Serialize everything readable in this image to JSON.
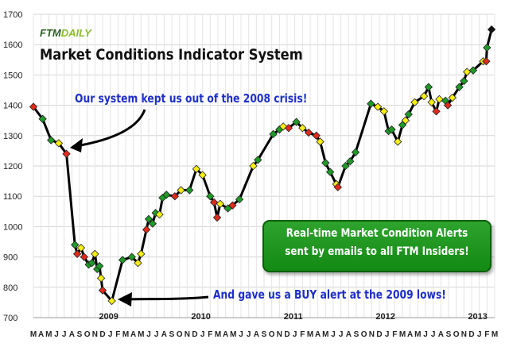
{
  "logo": {
    "part1": "FTM",
    "part2": "DAILY"
  },
  "title": "Market Conditions Indicator System",
  "annotations": {
    "top": "Our system kept us out of the 2008 crisis!",
    "bottom": "And gave us a BUY alert at the 2009 lows!"
  },
  "callout": {
    "line1": "Real-time Market Condition Alerts",
    "line2": "sent by emails to all FTM Insiders!"
  },
  "colors": {
    "red": "#e02a1c",
    "yellow": "#f6ee14",
    "green": "#1f9a28",
    "line": "#000000"
  },
  "chart_data": {
    "type": "line",
    "ylim": [
      700,
      1700
    ],
    "yticks": [
      700,
      800,
      900,
      1000,
      1100,
      1200,
      1300,
      1400,
      1500,
      1600,
      1700
    ],
    "month_labels": [
      "M",
      "A",
      "M",
      "J",
      "J",
      "A",
      "S",
      "O",
      "N",
      "D",
      "J",
      "F",
      "M",
      "A",
      "M",
      "J",
      "J",
      "A",
      "S",
      "O",
      "N",
      "D",
      "J",
      "F",
      "M",
      "A",
      "M",
      "J",
      "J",
      "A",
      "S",
      "O",
      "N",
      "D",
      "J",
      "F",
      "M",
      "A",
      "M",
      "J",
      "J",
      "A",
      "S",
      "O",
      "N",
      "D",
      "J",
      "F",
      "M",
      "A",
      "M",
      "J",
      "J",
      "A",
      "S",
      "O",
      "N",
      "D",
      "J",
      "F",
      "M"
    ],
    "year_labels": [
      {
        "label": "2009",
        "month_index": 10
      },
      {
        "label": "2010",
        "month_index": 22
      },
      {
        "label": "2011",
        "month_index": 34
      },
      {
        "label": "2012",
        "month_index": 46
      },
      {
        "label": "2013",
        "month_index": 58
      }
    ],
    "series": [
      {
        "points": [
          [
            0.0,
            1395,
            "red"
          ],
          [
            1.2,
            1355,
            "green"
          ],
          [
            2.3,
            1285,
            "green"
          ],
          [
            3.3,
            1275,
            "yellow"
          ],
          [
            4.3,
            1240,
            "red"
          ],
          [
            5.4,
            940,
            "green"
          ],
          [
            5.7,
            910,
            "red"
          ],
          [
            6.2,
            930,
            "yellow"
          ],
          [
            6.6,
            900,
            "red"
          ],
          [
            7.2,
            875,
            "green"
          ],
          [
            7.6,
            880,
            "green"
          ],
          [
            8.0,
            910,
            "yellow"
          ],
          [
            8.3,
            860,
            "green"
          ],
          [
            8.6,
            870,
            "green"
          ],
          [
            8.8,
            830,
            "yellow"
          ],
          [
            9.0,
            790,
            "red"
          ],
          [
            10.2,
            755,
            "yellow"
          ],
          [
            11.6,
            890,
            "green"
          ],
          [
            12.8,
            900,
            "green"
          ],
          [
            13.6,
            880,
            "yellow"
          ],
          [
            14.0,
            910,
            "yellow"
          ],
          [
            14.7,
            990,
            "red"
          ],
          [
            15.0,
            1025,
            "green"
          ],
          [
            15.5,
            1010,
            "green"
          ],
          [
            15.9,
            1045,
            "green"
          ],
          [
            16.4,
            1040,
            "yellow"
          ],
          [
            16.8,
            1095,
            "green"
          ],
          [
            17.3,
            1105,
            "green"
          ],
          [
            18.4,
            1100,
            "red"
          ],
          [
            19.2,
            1120,
            "yellow"
          ],
          [
            20.3,
            1120,
            "green"
          ],
          [
            21.2,
            1190,
            "yellow"
          ],
          [
            22.0,
            1170,
            "yellow"
          ],
          [
            23.0,
            1100,
            "green"
          ],
          [
            23.5,
            1080,
            "red"
          ],
          [
            23.9,
            1030,
            "red"
          ],
          [
            24.3,
            1075,
            "yellow"
          ],
          [
            25.3,
            1060,
            "green"
          ],
          [
            25.9,
            1070,
            "red"
          ],
          [
            26.8,
            1090,
            "green"
          ],
          [
            28.6,
            1200,
            "yellow"
          ],
          [
            29.2,
            1220,
            "green"
          ],
          [
            31.2,
            1305,
            "green"
          ],
          [
            32.0,
            1320,
            "green"
          ],
          [
            32.5,
            1330,
            "yellow"
          ],
          [
            33.2,
            1325,
            "red"
          ],
          [
            34.2,
            1345,
            "green"
          ],
          [
            35.0,
            1325,
            "yellow"
          ],
          [
            35.8,
            1310,
            "red"
          ],
          [
            36.8,
            1300,
            "red"
          ],
          [
            37.3,
            1280,
            "yellow"
          ],
          [
            38.0,
            1210,
            "green"
          ],
          [
            38.6,
            1180,
            "green"
          ],
          [
            39.4,
            1140,
            "yellow"
          ],
          [
            39.6,
            1130,
            "red"
          ],
          [
            40.6,
            1200,
            "green"
          ],
          [
            41.2,
            1215,
            "green"
          ],
          [
            41.9,
            1245,
            "green"
          ],
          [
            43.9,
            1405,
            "green"
          ],
          [
            44.8,
            1395,
            "yellow"
          ],
          [
            45.6,
            1380,
            "yellow"
          ],
          [
            46.2,
            1315,
            "green"
          ],
          [
            46.6,
            1320,
            "green"
          ],
          [
            47.4,
            1280,
            "yellow"
          ],
          [
            48.0,
            1335,
            "green"
          ],
          [
            48.4,
            1350,
            "yellow"
          ],
          [
            48.8,
            1370,
            "green"
          ],
          [
            49.6,
            1410,
            "yellow"
          ],
          [
            50.8,
            1430,
            "yellow"
          ],
          [
            51.4,
            1460,
            "green"
          ],
          [
            51.8,
            1410,
            "yellow"
          ],
          [
            52.4,
            1380,
            "red"
          ],
          [
            52.8,
            1420,
            "yellow"
          ],
          [
            53.6,
            1415,
            "green"
          ],
          [
            53.9,
            1400,
            "red"
          ],
          [
            54.5,
            1425,
            "yellow"
          ],
          [
            55.4,
            1460,
            "green"
          ],
          [
            56.0,
            1480,
            "green"
          ],
          [
            56.4,
            1510,
            "yellow"
          ],
          [
            57.2,
            1515,
            "green"
          ],
          [
            58.5,
            1545,
            "yellow"
          ],
          [
            58.9,
            1545,
            "red"
          ],
          [
            59.0,
            1590,
            "green"
          ],
          [
            59.6,
            1650,
            "black"
          ]
        ]
      }
    ]
  }
}
